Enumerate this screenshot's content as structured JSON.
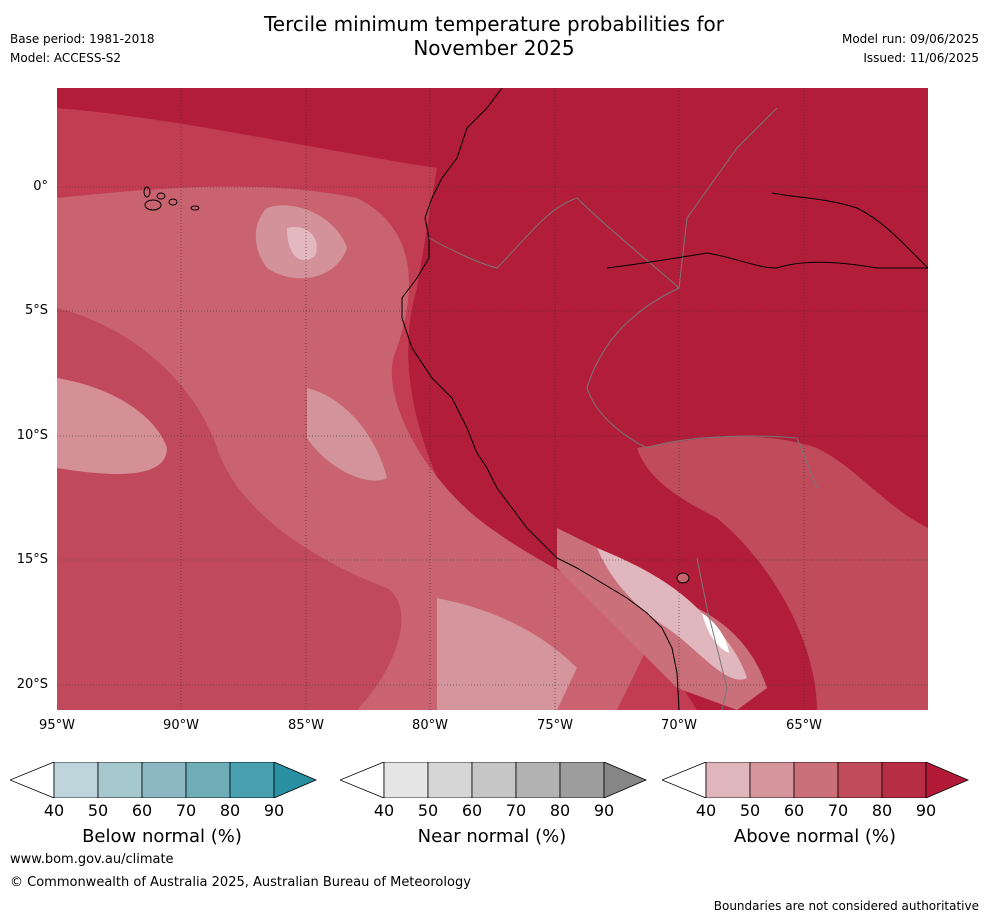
{
  "header": {
    "title_line1": "Tercile minimum temperature probabilities for",
    "title_line2": "November 2025",
    "base_period": "Base period: 1981-2018",
    "model": "Model: ACCESS-S2",
    "model_run": "Model run: 09/06/2025",
    "issued": "Issued: 11/06/2025"
  },
  "map": {
    "lat_labels": [
      "0°",
      "5°S",
      "10°S",
      "15°S",
      "20°S"
    ],
    "lon_labels": [
      "95°W",
      "90°W",
      "85°W",
      "80°W",
      "75°W",
      "70°W",
      "65°W"
    ],
    "background_color": "#b21e3a"
  },
  "colorbars": [
    {
      "name": "Below normal (%)",
      "ticks": [
        "40",
        "50",
        "60",
        "70",
        "80",
        "90"
      ],
      "colors": [
        "#ffffff",
        "#bdd5db",
        "#a6c8cf",
        "#8bb8c3",
        "#6eadb8",
        "#48a0b0",
        "#2b8fa3"
      ]
    },
    {
      "name": "Near normal (%)",
      "ticks": [
        "40",
        "50",
        "60",
        "70",
        "80",
        "90"
      ],
      "colors": [
        "#ffffff",
        "#e5e5e5",
        "#d6d6d6",
        "#c6c6c6",
        "#b3b3b3",
        "#9d9d9d",
        "#868686"
      ]
    },
    {
      "name": "Above normal (%)",
      "ticks": [
        "40",
        "50",
        "60",
        "70",
        "80",
        "90"
      ],
      "colors": [
        "#ffffff",
        "#e0b7bd",
        "#d4959d",
        "#c97079",
        "#c04b5b",
        "#b72e44",
        "#b21a37"
      ]
    }
  ],
  "footer": {
    "website": "www.bom.gov.au/climate",
    "copyright": "© Commonwealth of Australia 2025, Australian Bureau of Meteorology",
    "disclaimer": "Boundaries are not considered authoritative"
  }
}
